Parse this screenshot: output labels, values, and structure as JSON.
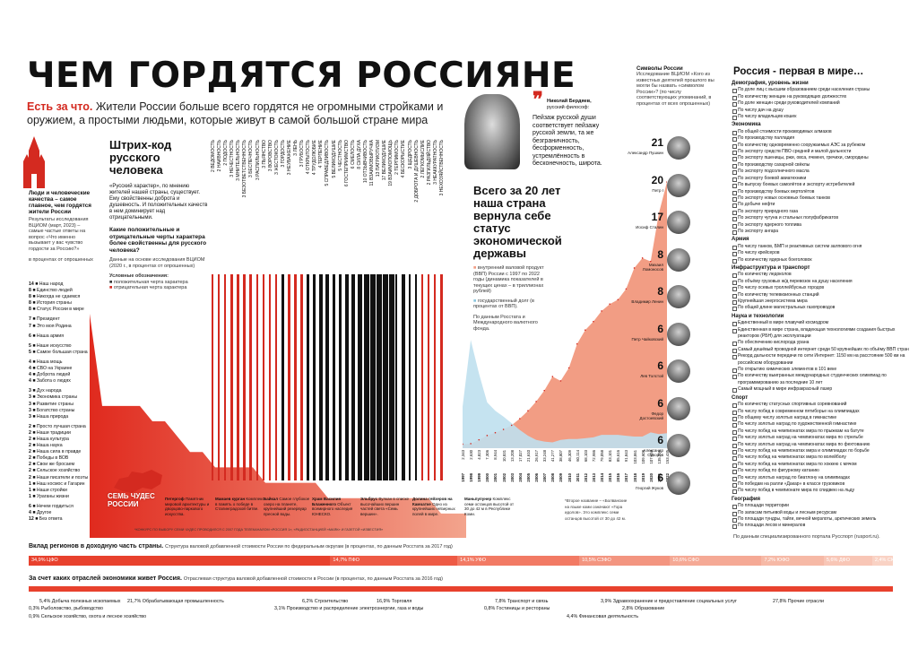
{
  "header": {
    "title": "ЧЕМ ГОРДЯТСЯ РОССИЯНЕ",
    "lead_bold": "Есть за что.",
    "lead_text": "Жители России больше всего гордятся не огромными стройками и оружием, а простыми людьми, которые живут в самой большой стране мира"
  },
  "pride_block": {
    "heading": "Люди и человеческие качества – самое главное, чем гордятся жители России",
    "survey_note": "Результаты исследования ВЦИОМ (март, 2023) – самые частые ответы на вопрос «Что именно вызывает у вас чувство гордости за Россию?»",
    "unit_note": "в процентах от опрошенных",
    "items": [
      {
        "value": 14,
        "label": "Наш народ"
      },
      {
        "value": 8,
        "label": "Единство людей"
      },
      {
        "value": 8,
        "label": "Никогда не сдаемся"
      },
      {
        "value": 8,
        "label": "История страны"
      },
      {
        "value": 8,
        "label": "Статус России в мире"
      },
      {
        "value": 7,
        "label": "Президент"
      },
      {
        "value": 7,
        "label": "Это моя Родина"
      },
      {
        "value": 6,
        "label": "Наша армия"
      },
      {
        "value": 5,
        "label": "Наше искусство"
      },
      {
        "value": 5,
        "label": "Самое большая страна"
      },
      {
        "value": 4,
        "label": "Наша мощь"
      },
      {
        "value": 4,
        "label": "СВО на Украине"
      },
      {
        "value": 4,
        "label": "Доброта людей"
      },
      {
        "value": 4,
        "label": "Забота о людях"
      },
      {
        "value": 3,
        "label": "Дух народа"
      },
      {
        "value": 3,
        "label": "Экономика страны"
      },
      {
        "value": 3,
        "label": "Развитие страны"
      },
      {
        "value": 3,
        "label": "Богатство страны"
      },
      {
        "value": 3,
        "label": "Наша природа"
      },
      {
        "value": 2,
        "label": "Просто лучшая страна"
      },
      {
        "value": 2,
        "label": "Наши традиции"
      },
      {
        "value": 2,
        "label": "Наша культура"
      },
      {
        "value": 2,
        "label": "Наша наука"
      },
      {
        "value": 2,
        "label": "Наша сила в правде"
      },
      {
        "value": 2,
        "label": "Победы в ВОВ"
      },
      {
        "value": 2,
        "label": "Свои же бросаем"
      },
      {
        "value": 2,
        "label": "Сельское хозяйство"
      },
      {
        "value": 2,
        "label": "Наши писатели и поэты"
      },
      {
        "value": 1,
        "label": "Наш космос и Гагарин"
      },
      {
        "value": 1,
        "label": "Наши стройки"
      },
      {
        "value": 1,
        "label": "Ураганы жизни"
      },
      {
        "value": 6,
        "label": "Нечем гордиться"
      },
      {
        "value": 4,
        "label": "Другое"
      },
      {
        "value": 12,
        "label": "Без ответа"
      }
    ]
  },
  "barcode": {
    "heading": "Штрих-код русского человека",
    "quote": "«Русский характер», по мнению жителей нашей страны, сущеcтвует. Ему свойственны доброта и душевность. И положительных качеств в нем доминирует над отрицательными.",
    "q_heading": "Какие положительные и отрицательные черты характера более свойственны для русского человека?",
    "q_note": "Данные на основе исследования ВЦИОМ (2020 г., в процентах от опрошенных)",
    "legend_title": "Условные обозначения:",
    "legend_pos": "положительная черта характера",
    "legend_neg": "отрицательная черта характера",
    "traits": [
      {
        "value": 2,
        "label": "ВЕДОМОСТЬ",
        "positive": false
      },
      {
        "value": 2,
        "label": "НАИВНОСТЬ",
        "positive": false
      },
      {
        "value": 2,
        "label": "ПОДОСТЬ",
        "positive": false
      },
      {
        "value": 3,
        "label": "НЕЧЕСТНОСТЬ",
        "positive": false
      },
      {
        "value": 3,
        "label": "МНИТЕЛЬНОСТЬ",
        "positive": false
      },
      {
        "value": 3,
        "label": "БЕЗОТВЕТСТВЕННОСТЬ",
        "positive": false
      },
      {
        "value": 3,
        "label": "БЕСПЕЧНОСТЬ",
        "positive": false
      },
      {
        "value": 3,
        "label": "РАСПИЛЬНОСТЬ",
        "positive": false
      },
      {
        "value": 3,
        "label": "ПЬЯНСТВО",
        "positive": false
      },
      {
        "value": 3,
        "label": "ВОРОВСТВО",
        "positive": false
      },
      {
        "value": 3,
        "label": "ЖЕСТОКОСТЬ",
        "positive": false
      },
      {
        "value": 3,
        "label": "ГОРДОСТЬ",
        "positive": true
      },
      {
        "value": 3,
        "label": "НЕУВАЖЕНИЕ",
        "positive": false
      },
      {
        "value": 3,
        "label": "ЛЕНЬ",
        "positive": false
      },
      {
        "value": 3,
        "label": "ГРУБОСТЬ",
        "positive": false
      },
      {
        "value": 4,
        "label": "ОТКРЫТОСТЬ",
        "positive": true
      },
      {
        "value": 4,
        "label": "ТРУДОЛЮБИЕ",
        "positive": true
      },
      {
        "value": 4,
        "label": "ТЕРПЕНИЕ",
        "positive": true
      },
      {
        "value": 5,
        "label": "СПРАВЕДЛИВОСТЬ",
        "positive": true
      },
      {
        "value": 5,
        "label": "ВЕЛИКОДУШИЕ",
        "positive": true
      },
      {
        "value": 5,
        "label": "ЧЕСТНОСТЬ",
        "positive": true
      },
      {
        "value": 6,
        "label": "ГОСТЕПРИИМСТВО",
        "positive": true
      },
      {
        "value": 6,
        "label": "СМЕЛОСТЬ",
        "positive": true
      },
      {
        "value": 8,
        "label": "СИЛА ДУХА",
        "positive": true
      },
      {
        "value": 10,
        "label": "ОТЗЫВЧИВОСТЬ",
        "positive": true
      },
      {
        "value": 11,
        "label": "ВЗАИМОВЫРУЧКА",
        "positive": true
      },
      {
        "value": 13,
        "label": "ПАТРИОТИЗМ",
        "positive": true
      },
      {
        "value": 17,
        "label": "ВЕЛИКОДУШИЕ",
        "positive": true
      },
      {
        "value": 19,
        "label": "ВЗАИМОПОМОЩЬ",
        "positive": true
      },
      {
        "value": 2,
        "label": "ТЕРПИМОСТЬ",
        "positive": true
      },
      {
        "value": 4,
        "label": "БЕСКОРЫСТИЕ",
        "positive": true
      },
      {
        "value": 3,
        "label": "ЩЕДРОСТЬ",
        "positive": true
      },
      {
        "value": 2,
        "label": "ДОБРОТА И ДУШЕВНОСТЬ",
        "positive": true
      },
      {
        "value": 2,
        "label": "ЛЕГКОМЫСЛИЕ",
        "positive": false
      },
      {
        "value": 2,
        "label": "РАЗГИЛЬДЯЙСТВО",
        "positive": false
      },
      {
        "value": 3,
        "label": "НЕАККУРАТНОСТЬ",
        "positive": false
      },
      {
        "value": 3,
        "label": "НЕХОЗЯЙСТВЕННОСТЬ",
        "positive": false
      }
    ]
  },
  "berdyaev": {
    "name": "Николай Бердяев,",
    "role": "русский философ:",
    "quote": "Пейзаж русской души соответствует пейзажу русской земли, та же безграничность, бесформенность, устремлённость в бесконечность, широта."
  },
  "economy": {
    "heading": "Всего за 20 лет наша страна вернула себе статус экономической державы",
    "legend_gdp": "внутренний валовой продукт (ВВП) России с 1997 по 2022 годы (динамика показателей в текущих ценах – в триллионах рублей)",
    "legend_debt": "государственный долг (в процентах от ВВП).",
    "source": "По данным Росстата и Международного валютного фонда.",
    "gdp_labels": [
      "2,343",
      "2,630",
      "4,823",
      "7,306",
      "8,944",
      "10,831",
      "13,208",
      "17,027",
      "21,610",
      "26,917",
      "33,248",
      "41,277",
      "38,807",
      "46,309",
      "60,114",
      "68,103",
      "72,986",
      "79,058",
      "83,101",
      "85,616",
      "91,843",
      "103,861",
      "109,608",
      "107,658",
      "135,295",
      "153,435"
    ]
  },
  "chart_data": {
    "type": "area",
    "x": [
      1997,
      1998,
      1999,
      2000,
      2001,
      2002,
      2003,
      2004,
      2005,
      2006,
      2007,
      2008,
      2009,
      2010,
      2011,
      2012,
      2013,
      2014,
      2015,
      2016,
      2017,
      2018,
      2019,
      2020,
      2021,
      2022
    ],
    "series": [
      {
        "name": "внутренний валовой продукт (ВВП)",
        "values": [
          2.343,
          2.63,
          4.823,
          7.306,
          8.944,
          10.831,
          13.208,
          17.027,
          21.61,
          26.917,
          33.248,
          41.277,
          38.807,
          46.309,
          60.114,
          68.103,
          72.986,
          79.058,
          83.101,
          85.616,
          91.843,
          103.861,
          109.608,
          107.658,
          135.295,
          153.435
        ]
      },
      {
        "name": "государственный долг",
        "values": [
          50,
          130,
          90,
          55,
          45,
          38,
          30,
          22,
          15,
          10,
          8,
          7,
          10,
          11,
          11,
          12,
          13,
          16,
          16,
          16,
          15,
          14,
          14,
          19,
          17,
          18
        ]
      }
    ]
  },
  "symbols": {
    "heading": "Символы России",
    "text": "Исследование ВЦИОМ «Кого из известных деятелей прошлого вы могли бы назвать «символом России»? (по числу соответствующих упоминаний, в процентах от всех опрошенных)",
    "people": [
      {
        "rank": "21",
        "name": "Александр Пушкин"
      },
      {
        "rank": "20",
        "name": "Петр I"
      },
      {
        "rank": "17",
        "name": "Иосиф Сталин"
      },
      {
        "rank": "8",
        "name": "Михаил Ломоносов"
      },
      {
        "rank": "8",
        "name": "Владимир Ленин"
      },
      {
        "rank": "6",
        "name": "Петр Чайковский"
      },
      {
        "rank": "6",
        "name": "Лев Толстой"
      },
      {
        "rank": "6",
        "name": "Федор Достоевский"
      },
      {
        "rank": "6",
        "name": "Александр Суворов"
      },
      {
        "rank": "6",
        "name": "Георгий Жуков"
      }
    ]
  },
  "first": {
    "heading": "Россия - первая в мире…",
    "sections": [
      {
        "title": "Демография, уровень жизни",
        "items": [
          "По доле лиц с высшим образованием среди населения страны",
          "По количеству женщин на руководящих должностях",
          "По доле женщин среди руководителей компаний",
          "По числу дач на душу",
          "По числу владельцев кошек"
        ]
      },
      {
        "title": "Экономика",
        "items": [
          "По общей стоимости производимых алмазов",
          "По производству палладия",
          "По количеству одновременно сооружаемых АЭС за рубежом",
          "По экспорту средств ПВО средней и малой дальности",
          "По экспорту пшеницы, ржи, овса, ячменя, гречихи, смородины",
          "По производству сахарной свёклы",
          "По экспорту подсолнечного масла",
          "По экспорту боевой авиатехники",
          "По выпуску боевых самолётов и экспорту истребителей",
          "По производству боевых вертолётов",
          "По экспорту новых основных боевых танков",
          "По добыче нефти",
          "По экспорту природного газа",
          "По экспорту чугуна и стальных полуфабрикатов",
          "По экспорту ядерного топлива",
          "По экспорту ангара"
        ]
      },
      {
        "title": "Армия",
        "items": [
          "По числу танков, БМП и реактивных систем залпового огня",
          "По числу крейсеров",
          "По количеству ядерных боеголовок"
        ]
      },
      {
        "title": "Инфраструктура и транспорт",
        "items": [
          "По количеству ледоколов",
          "По объёму грузовых ж/д перевозок на душу населения",
          "По числу осевых троллейбусных городов",
          "По количеству телевизионных станций",
          "Крупнейшая энергосистема мира",
          "По общей длине магистральных газопроводов"
        ]
      },
      {
        "title": "Наука и технологии",
        "items": [
          "Единственный в мире плавучий космодром",
          "Единственная в мире страна, владеющая технологиями создания быстрых реакторов (РБН) для эксплуатации",
          "По обеспечению кислорода урана",
          "Самый дешёвый проводной интернет среди 50 крупнейших по объёму ВВП стран",
          "Рекорд дальности передачи по сети Интернет: 1150 км на расстояние 500 км на российском оборудовании",
          "По открытию химических элементов в 101 веке",
          "По количеству выигранных международных студенческих олимпиад по программированию за последние 10 лет",
          "Самый мощный в мире инфракрасный лазер"
        ]
      },
      {
        "title": "Спорт",
        "items": [
          "По количеству статусных спортивных соревнований",
          "По числу побед в современном пятиборье на олимпиадах",
          "По общему числу золотых наград в гимнастике",
          "По числу золотых наград по художественной гимнастике",
          "По числу побед на чемпионатах мира по прыжкам на батуте",
          "По числу золотых наград на чемпионатах мира по стрельбе",
          "По числу золотых наград на чемпионатах мира по фехтованию",
          "По числу побед на чемпионатах мира и олимпиадах по борьбе",
          "По числу побед на чемпионатах мира по волейболу",
          "По числу побед на чемпионатах мира по хоккею с мячом",
          "По числу побед по фигурному катанию",
          "По числу золотых наград по биатлону на олимпиадах",
          "По победам на ралли «Дакар» в классе грузовиков",
          "По числу побед в чемпионате мира по спидвею на льду"
        ]
      },
      {
        "title": "География",
        "items": [
          "По площади территории",
          "По запасам питьевой воды и лесным ресурсам",
          "По площади тундры, тайги, вечной мерзлоты, арктических земель",
          "По площади лесов и минералов"
        ]
      }
    ],
    "source": "По данным специализированного портала Русспорт (rusport.ru)."
  },
  "wonders": {
    "heading": "СЕМЬ ЧУДЕС РОССИИ",
    "items": [
      {
        "name": "Петергоф",
        "text": "Памятник мировой архитектуры и дворцово-паркового искусства."
      },
      {
        "name": "Мамаев курган",
        "text": "Комплекс в память о победе в Сталинградской битве."
      },
      {
        "name": "Байкал",
        "text": "Самое глубокое озеро на планете, крупнейший резервуар пресной воды."
      },
      {
        "name": "Храм Василия Блаженного",
        "text": "Объект всемирного наследия ЮНЕСКО."
      },
      {
        "name": "Эльбрус",
        "text": "Вулкан в списке высочайших вершин частей света «Семь вершин»."
      },
      {
        "name": "Долина гейзеров на Камчатке",
        "text": "Одно из крупнейших гейзерных полей в мире."
      },
      {
        "name": "Маньпупунер",
        "text": "Комплекс семи останцов высотой от 30 до 42 м в Республике Коми."
      }
    ],
    "note_left": "*Второе название – «Болванские на языке коми означают «Гора идолов». Это комплекс семи останцов высотой от 30 до 42 м.",
    "footnote": "*КОНКУРС ПО ВЫБОРУ СЕМИ ЧУДЕС ПРОВОДИЛСЯ С 2007 ГОДА ТЕЛЕКАНАЛОМ «РОССИЯ 1», «РАДИОСТАНЦИЕЙ «МАЯК» И ГАЗЕТОЙ «ИЗВЕСТИЯ»"
  },
  "regions": {
    "heading": "Вклад регионов в доходную часть страны.",
    "note": "Структура валовой добавленной стоимости России по федеральным округам (в процентах, по данным Росстата за 2017 год)",
    "items": [
      {
        "share": 34.9,
        "label": "34,9% ЦФО",
        "color": "#e8412d"
      },
      {
        "share": 14.7,
        "label": "14,7% ПФО",
        "color": "#ee5a45"
      },
      {
        "share": 14.1,
        "label": "14,1% УФО",
        "color": "#f27a64"
      },
      {
        "share": 10.5,
        "label": "10,5% СЗФО",
        "color": "#f39580"
      },
      {
        "share": 10.6,
        "label": "10,6% СФО",
        "color": "#f5a995"
      },
      {
        "share": 7.2,
        "label": "7,2% ЮФО",
        "color": "#f6b9a6"
      },
      {
        "share": 5.6,
        "label": "5,6% ДФО",
        "color": "#f8c6b6"
      },
      {
        "share": 2.4,
        "label": "2,4% СКФО",
        "color": "#f9d2c4"
      }
    ]
  },
  "industries": {
    "heading": "За счет каких отраслей экономики живет Россия.",
    "note": "Отраслевая структура валовой добавленной стоимости в России (в процентах, по данным Росстата за 2016 год)",
    "items": [
      {
        "value": 5.4,
        "label": "5,4% Добыча полезных ископаемых"
      },
      {
        "value": 0.3,
        "label": "0,3% Рыболовство, рыбоводство"
      },
      {
        "value": 0.9,
        "label": "0,9% Сельское хозяйство, охота и лесное хозяйство"
      },
      {
        "value": 21.7,
        "label": "21,7% Обрабатывающая промышленность"
      },
      {
        "value": 3.1,
        "label": "3,1% Производство и распределение электроэнергии, газа и воды"
      },
      {
        "value": 6.2,
        "label": "6,2% Строительство"
      },
      {
        "value": 16.9,
        "label": "16,9% Торговля"
      },
      {
        "value": 7.8,
        "label": "7,8% Транспорт и связь"
      },
      {
        "value": 0.8,
        "label": "0,8% Гостиницы и рестораны"
      },
      {
        "value": 3.9,
        "label": "3,9% Здравоохранение и предоставление социальных услуг"
      },
      {
        "value": 2.8,
        "label": "2,8% Образование"
      },
      {
        "value": 4.4,
        "label": "4,4% Финансовая деятельность"
      },
      {
        "value": 27.8,
        "label": "27,8% Прочие отрасли"
      }
    ]
  },
  "colors": {
    "accent": "#d42a20",
    "salmon": "#f29d84",
    "debt": "#bfe0ee"
  }
}
